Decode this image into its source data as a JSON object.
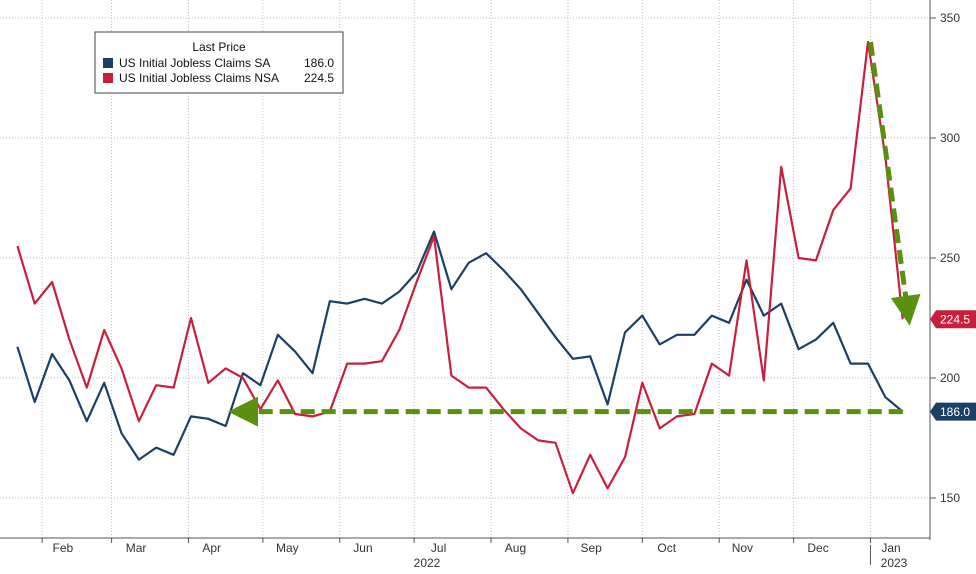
{
  "chart_data": {
    "type": "line",
    "legend": {
      "title": "Last Price",
      "placement": "top-left",
      "entries": [
        {
          "name": "US Initial Jobless Claims SA",
          "value": "186.0"
        },
        {
          "name": "US Initial Jobless Claims NSA",
          "value": "224.5"
        }
      ]
    },
    "x_axis": {
      "months": [
        "Feb",
        "Mar",
        "Apr",
        "May",
        "Jun",
        "Jul",
        "Aug",
        "Sep",
        "Oct",
        "Nov",
        "Dec",
        "Jan"
      ],
      "years": [
        "2022",
        "2023"
      ]
    },
    "y_axis": {
      "ticks": [
        "150",
        "200",
        "250",
        "300",
        "350"
      ],
      "range": [
        140,
        355
      ],
      "position": "right"
    },
    "grid": true,
    "series": [
      {
        "name": "US Initial Jobless Claims SA",
        "color": "#1c3f66",
        "last_label": "186.0",
        "x": [
          "2022-01-22",
          "2022-01-29",
          "2022-02-05",
          "2022-02-12",
          "2022-02-19",
          "2022-02-26",
          "2022-03-05",
          "2022-03-12",
          "2022-03-19",
          "2022-03-26",
          "2022-04-02",
          "2022-04-09",
          "2022-04-16",
          "2022-04-23",
          "2022-04-30",
          "2022-05-07",
          "2022-05-14",
          "2022-05-21",
          "2022-05-28",
          "2022-06-04",
          "2022-06-11",
          "2022-06-18",
          "2022-06-25",
          "2022-07-02",
          "2022-07-09",
          "2022-07-16",
          "2022-07-23",
          "2022-07-30",
          "2022-08-06",
          "2022-08-13",
          "2022-08-20",
          "2022-08-27",
          "2022-09-03",
          "2022-09-10",
          "2022-09-17",
          "2022-09-24",
          "2022-10-01",
          "2022-10-08",
          "2022-10-15",
          "2022-10-22",
          "2022-10-29",
          "2022-11-05",
          "2022-11-12",
          "2022-11-19",
          "2022-11-26",
          "2022-12-03",
          "2022-12-10",
          "2022-12-17",
          "2022-12-24",
          "2022-12-31",
          "2023-01-07",
          "2023-01-14"
        ],
        "values": [
          213,
          190,
          210,
          199,
          182,
          198,
          177,
          166,
          171,
          168,
          184,
          183,
          180,
          202,
          197,
          218,
          211,
          202,
          232,
          231,
          233,
          231,
          236,
          244,
          261,
          237,
          248,
          252,
          245,
          237,
          227,
          217,
          208,
          209,
          189,
          219,
          226,
          214,
          218,
          218,
          226,
          223,
          241,
          226,
          231,
          212,
          216,
          223,
          206,
          206,
          192,
          186
        ]
      },
      {
        "name": "US Initial Jobless Claims NSA",
        "color": "#c8203c",
        "last_label": "224.5",
        "x": [
          "2022-01-22",
          "2022-01-29",
          "2022-02-05",
          "2022-02-12",
          "2022-02-19",
          "2022-02-26",
          "2022-03-05",
          "2022-03-12",
          "2022-03-19",
          "2022-03-26",
          "2022-04-02",
          "2022-04-09",
          "2022-04-16",
          "2022-04-23",
          "2022-04-30",
          "2022-05-07",
          "2022-05-14",
          "2022-05-21",
          "2022-05-28",
          "2022-06-04",
          "2022-06-11",
          "2022-06-18",
          "2022-06-25",
          "2022-07-02",
          "2022-07-09",
          "2022-07-16",
          "2022-07-23",
          "2022-07-30",
          "2022-08-06",
          "2022-08-13",
          "2022-08-20",
          "2022-08-27",
          "2022-09-03",
          "2022-09-10",
          "2022-09-17",
          "2022-09-24",
          "2022-10-01",
          "2022-10-08",
          "2022-10-15",
          "2022-10-22",
          "2022-10-29",
          "2022-11-05",
          "2022-11-12",
          "2022-11-19",
          "2022-11-26",
          "2022-12-03",
          "2022-12-10",
          "2022-12-17",
          "2022-12-24",
          "2022-12-31",
          "2023-01-07",
          "2023-01-14"
        ],
        "values": [
          255,
          231,
          240,
          216,
          196,
          220,
          204,
          182,
          197,
          196,
          225,
          198,
          204,
          200,
          187,
          199,
          185,
          184,
          186,
          206,
          206,
          207,
          220,
          240,
          259,
          201,
          196,
          196,
          187,
          179,
          174,
          173,
          152,
          168,
          154,
          167,
          198,
          179,
          184,
          185,
          206,
          201,
          249,
          199,
          288,
          250,
          249,
          270,
          279,
          340,
          292,
          224.5
        ]
      }
    ],
    "annotations": [
      {
        "type": "dashed-arrow",
        "color": "#5a8f0f",
        "from": {
          "x": "2023-01-14",
          "y": 186
        },
        "to": {
          "x": "2022-04-23",
          "y": 186
        }
      },
      {
        "type": "dashed-arrow",
        "color": "#5a8f0f",
        "from": {
          "x": "2023-01-01",
          "y": 340
        },
        "to": {
          "x": "2023-01-16",
          "y": 228
        }
      }
    ]
  }
}
